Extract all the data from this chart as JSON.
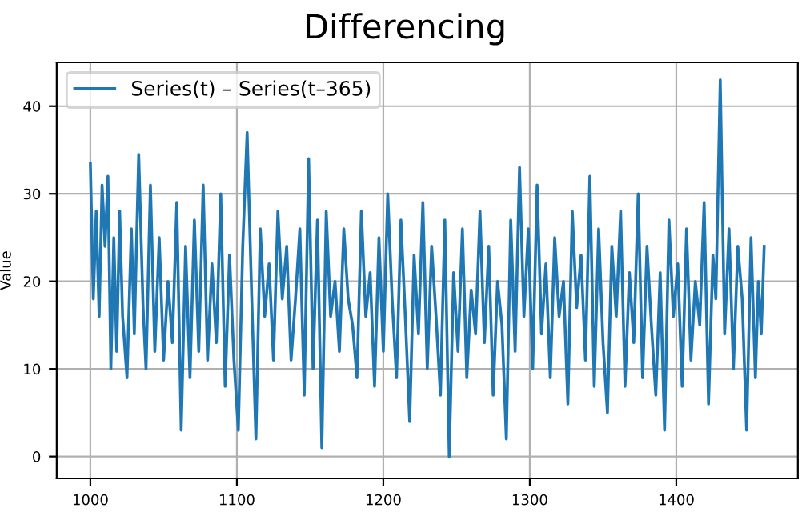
{
  "chart_data": {
    "type": "line",
    "title": "Differencing",
    "ylabel": "Value",
    "x": [
      1000,
      1002,
      1004,
      1006,
      1008,
      1010,
      1012,
      1014,
      1016,
      1018,
      1020,
      1022,
      1025,
      1028,
      1030,
      1033,
      1036,
      1038,
      1041,
      1044,
      1047,
      1050,
      1053,
      1056,
      1059,
      1062,
      1065,
      1068,
      1071,
      1074,
      1077,
      1080,
      1083,
      1086,
      1089,
      1092,
      1095,
      1098,
      1101,
      1104,
      1107,
      1110,
      1113,
      1116,
      1119,
      1122,
      1125,
      1128,
      1131,
      1134,
      1137,
      1140,
      1143,
      1146,
      1149,
      1152,
      1155,
      1158,
      1161,
      1164,
      1167,
      1170,
      1173,
      1176,
      1179,
      1182,
      1185,
      1188,
      1191,
      1194,
      1197,
      1200,
      1203,
      1206,
      1209,
      1212,
      1215,
      1218,
      1221,
      1224,
      1227,
      1230,
      1233,
      1236,
      1239,
      1242,
      1245,
      1248,
      1251,
      1254,
      1257,
      1260,
      1263,
      1266,
      1269,
      1272,
      1275,
      1278,
      1281,
      1284,
      1287,
      1290,
      1293,
      1296,
      1299,
      1302,
      1305,
      1308,
      1311,
      1314,
      1317,
      1320,
      1323,
      1326,
      1329,
      1332,
      1335,
      1338,
      1341,
      1344,
      1347,
      1350,
      1353,
      1356,
      1359,
      1362,
      1365,
      1368,
      1371,
      1374,
      1377,
      1380,
      1383,
      1386,
      1389,
      1392,
      1395,
      1398,
      1401,
      1404,
      1407,
      1410,
      1413,
      1416,
      1419,
      1422,
      1425,
      1427,
      1430,
      1433,
      1436,
      1439,
      1442,
      1445,
      1448,
      1451,
      1454,
      1456,
      1458,
      1460
    ],
    "series": [
      {
        "name": "Series(t) – Series(t–365)",
        "color": "#1f77b4",
        "values": [
          33.5,
          18,
          28,
          16,
          31,
          24,
          32,
          10,
          25,
          12,
          28,
          16,
          9,
          26,
          14,
          34.5,
          17,
          10,
          31,
          12,
          25,
          11,
          20,
          13,
          29,
          3,
          24,
          9,
          27,
          12,
          31,
          11,
          22,
          13,
          30,
          8,
          23,
          11,
          3,
          24,
          37,
          19,
          2,
          26,
          16,
          22,
          11,
          28,
          18,
          24,
          11,
          18,
          26,
          7,
          34,
          10,
          27,
          1,
          28,
          16,
          20,
          12,
          26,
          18,
          15,
          9,
          28,
          16,
          21,
          8,
          25,
          12,
          30,
          18,
          9,
          27,
          16,
          4,
          23,
          14,
          29,
          10,
          24,
          16,
          7,
          27,
          0,
          21,
          12,
          26,
          9,
          19,
          14,
          28,
          13,
          24,
          7,
          20,
          15,
          2,
          27,
          12,
          33,
          16,
          26,
          10,
          31,
          14,
          22,
          9,
          25,
          16,
          20,
          6,
          28,
          17,
          23,
          11,
          32,
          8,
          26,
          13,
          5,
          24,
          16,
          28,
          8,
          21,
          13,
          30,
          9,
          24,
          15,
          7,
          21,
          3,
          27,
          16,
          22,
          8,
          26,
          11,
          20,
          15,
          29,
          6,
          23,
          18,
          43,
          14,
          26,
          10,
          24,
          18,
          3,
          25,
          9,
          20,
          14,
          24
        ]
      }
    ],
    "xlim": [
      977,
      1483
    ],
    "ylim": [
      -2.5,
      45
    ],
    "xticks": [
      1000,
      1100,
      1200,
      1300,
      1400
    ],
    "yticks": [
      0,
      10,
      20,
      30,
      40
    ],
    "grid": true,
    "legend": "top left",
    "line_style": "solid"
  }
}
